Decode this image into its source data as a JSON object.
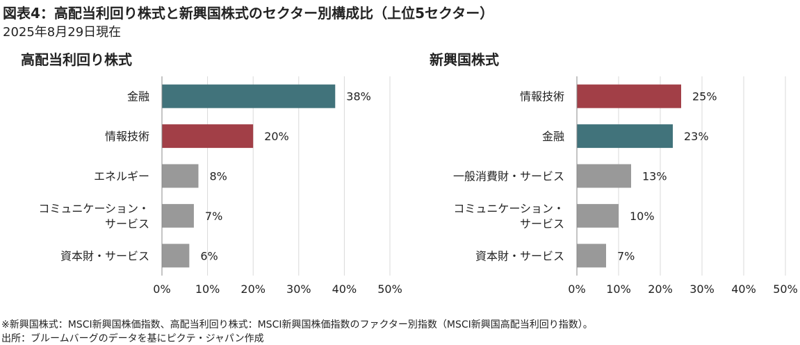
{
  "title": "図表4：高配当利回り株式と新興国株式のセクター別構成比（上位5セクター）",
  "subtitle": "2025年8月29日現在",
  "footnotes": [
    "※新興国株式：MSCI新興国株価指数、高配当利回り株式：MSCI新興国株価指数のファクター別指数（MSCI新興国高配当利回り指数）。",
    "出所：ブルームバーグのデータを基にピクテ・ジャパン作成"
  ],
  "colors": {
    "teal": "#41737b",
    "red": "#a23f47",
    "gray": "#999999",
    "grid": "#d9d9d9",
    "axis": "#888888"
  },
  "chart_data": [
    {
      "type": "bar",
      "orientation": "horizontal",
      "title": "高配当利回り株式",
      "categories": [
        "金融",
        "情報技術",
        "エネルギー",
        "コミュニケーション・\nサービス",
        "資本財・サービス"
      ],
      "values": [
        38,
        20,
        8,
        7,
        6
      ],
      "value_labels": [
        "38%",
        "20%",
        "8%",
        "7%",
        "6%"
      ],
      "bar_colors": [
        "teal",
        "red",
        "gray",
        "gray",
        "gray"
      ],
      "xlim": [
        0,
        50
      ],
      "x_ticks": [
        0,
        10,
        20,
        30,
        40,
        50
      ],
      "x_tick_labels": [
        "0%",
        "10%",
        "20%",
        "30%",
        "40%",
        "50%"
      ],
      "grid": true
    },
    {
      "type": "bar",
      "orientation": "horizontal",
      "title": "新興国株式",
      "categories": [
        "情報技術",
        "金融",
        "一般消費財・サービス",
        "コミュニケーション・\nサービス",
        "資本財・サービス"
      ],
      "values": [
        25,
        23,
        13,
        10,
        7
      ],
      "value_labels": [
        "25%",
        "23%",
        "13%",
        "10%",
        "7%"
      ],
      "bar_colors": [
        "red",
        "teal",
        "gray",
        "gray",
        "gray"
      ],
      "xlim": [
        0,
        50
      ],
      "x_ticks": [
        0,
        10,
        20,
        30,
        40,
        50
      ],
      "x_tick_labels": [
        "0%",
        "10%",
        "20%",
        "30%",
        "40%",
        "50%"
      ],
      "grid": true
    }
  ]
}
